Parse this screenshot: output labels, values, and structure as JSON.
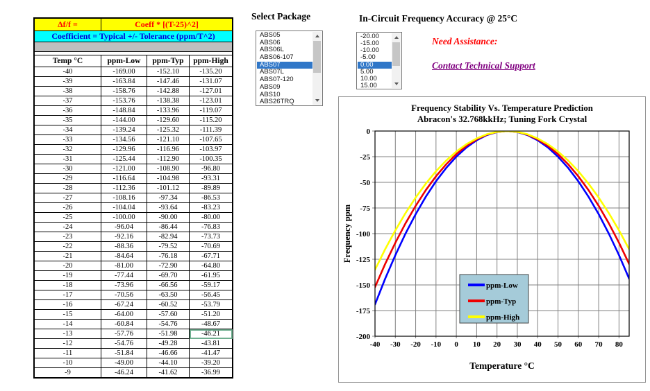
{
  "coeff_table": {
    "formula_row": {
      "label": "Δf/f =",
      "value": "Coeff * [(T-25)^2]"
    },
    "coefficient_row": "Coefficient =  Typical +/-  Tolerance (ppm/T^2)",
    "columns": [
      "Temp °C",
      "ppm-Low",
      "ppm-Typ",
      "ppm-High"
    ],
    "rows": [
      [
        "-40",
        "-169.00",
        "-152.10",
        "-135.20"
      ],
      [
        "-39",
        "-163.84",
        "-147.46",
        "-131.07"
      ],
      [
        "-38",
        "-158.76",
        "-142.88",
        "-127.01"
      ],
      [
        "-37",
        "-153.76",
        "-138.38",
        "-123.01"
      ],
      [
        "-36",
        "-148.84",
        "-133.96",
        "-119.07"
      ],
      [
        "-35",
        "-144.00",
        "-129.60",
        "-115.20"
      ],
      [
        "-34",
        "-139.24",
        "-125.32",
        "-111.39"
      ],
      [
        "-33",
        "-134.56",
        "-121.10",
        "-107.65"
      ],
      [
        "-32",
        "-129.96",
        "-116.96",
        "-103.97"
      ],
      [
        "-31",
        "-125.44",
        "-112.90",
        "-100.35"
      ],
      [
        "-30",
        "-121.00",
        "-108.90",
        "-96.80"
      ],
      [
        "-29",
        "-116.64",
        "-104.98",
        "-93.31"
      ],
      [
        "-28",
        "-112.36",
        "-101.12",
        "-89.89"
      ],
      [
        "-27",
        "-108.16",
        "-97.34",
        "-86.53"
      ],
      [
        "-26",
        "-104.04",
        "-93.64",
        "-83.23"
      ],
      [
        "-25",
        "-100.00",
        "-90.00",
        "-80.00"
      ],
      [
        "-24",
        "-96.04",
        "-86.44",
        "-76.83"
      ],
      [
        "-23",
        "-92.16",
        "-82.94",
        "-73.73"
      ],
      [
        "-22",
        "-88.36",
        "-79.52",
        "-70.69"
      ],
      [
        "-21",
        "-84.64",
        "-76.18",
        "-67.71"
      ],
      [
        "-20",
        "-81.00",
        "-72.90",
        "-64.80"
      ],
      [
        "-19",
        "-77.44",
        "-69.70",
        "-61.95"
      ],
      [
        "-18",
        "-73.96",
        "-66.56",
        "-59.17"
      ],
      [
        "-17",
        "-70.56",
        "-63.50",
        "-56.45"
      ],
      [
        "-16",
        "-67.24",
        "-60.52",
        "-53.79"
      ],
      [
        "-15",
        "-64.00",
        "-57.60",
        "-51.20"
      ],
      [
        "-14",
        "-60.84",
        "-54.76",
        "-48.67"
      ],
      [
        "-13",
        "-57.76",
        "-51.98",
        "-46.21"
      ],
      [
        "-12",
        "-54.76",
        "-49.28",
        "-43.81"
      ],
      [
        "-11",
        "-51.84",
        "-46.66",
        "-41.47"
      ],
      [
        "-10",
        "-49.00",
        "-44.10",
        "-39.20"
      ],
      [
        "-9",
        "-46.24",
        "-41.62",
        "-36.99"
      ]
    ],
    "selected_cell": {
      "temp": "-13",
      "column": "ppm-High"
    }
  },
  "package_list": {
    "label": "Select Package",
    "items": [
      "ABS05",
      "ABS06",
      "ABS06L",
      "ABS06-107",
      "ABS07",
      "ABS07L",
      "ABS07-120",
      "ABS09",
      "ABS10",
      "ABS26TRQ"
    ],
    "selected": "ABS07"
  },
  "accuracy_list": {
    "label": "In-Circuit Frequency Accuracy @ 25°C",
    "items": [
      "-20.00",
      "-15.00",
      "-10.00",
      "-5.00",
      "0.00",
      "5.00",
      "10.00",
      "15.00"
    ],
    "selected": "0.00"
  },
  "assistance": {
    "heading": "Need Assistance:",
    "link": "Contact Technical Support"
  },
  "chart_data": {
    "type": "line",
    "title": "Frequency Stability Vs. Temperature Prediction",
    "subtitle": "Abracon's 32.768kkHz; Tuning Fork Crystal",
    "xlabel": "Temperature °C",
    "ylabel": "Frequency ppm",
    "xlim": [
      -40,
      85
    ],
    "ylim": [
      -200,
      0
    ],
    "x_ticks": [
      -40,
      -30,
      -20,
      -10,
      0,
      10,
      20,
      30,
      40,
      50,
      60,
      70,
      80
    ],
    "y_ticks": [
      0,
      -25,
      -50,
      -75,
      -100,
      -125,
      -150,
      -175,
      -200
    ],
    "grid": true,
    "legend_position": "inside-bottom-center",
    "x": [
      -40,
      -35,
      -30,
      -25,
      -20,
      -15,
      -10,
      -5,
      0,
      5,
      10,
      15,
      20,
      25,
      30,
      35,
      40,
      45,
      50,
      55,
      60,
      65,
      70,
      75,
      80,
      85
    ],
    "series": [
      {
        "name": "ppm-Low",
        "color": "#0000FF",
        "values": [
          -169,
          -144,
          -121,
          -100,
          -81,
          -64,
          -49,
          -36,
          -25,
          -16,
          -9,
          -4,
          -1,
          0,
          -1,
          -4,
          -9,
          -16,
          -25,
          -36,
          -49,
          -64,
          -81,
          -100,
          -121,
          -144
        ]
      },
      {
        "name": "ppm-Typ",
        "color": "#EE0000",
        "values": [
          -152.1,
          -129.6,
          -108.9,
          -90,
          -72.9,
          -57.6,
          -44.1,
          -32.4,
          -22.5,
          -14.4,
          -8.1,
          -3.6,
          -0.9,
          0,
          -0.9,
          -3.6,
          -8.1,
          -14.4,
          -22.5,
          -32.4,
          -44.1,
          -57.6,
          -72.9,
          -90,
          -108.9,
          -129.6
        ]
      },
      {
        "name": "ppm-High",
        "color": "#FFFF00",
        "values": [
          -135.2,
          -115.2,
          -96.8,
          -80,
          -64.8,
          -51.2,
          -39.2,
          -28.8,
          -20,
          -12.8,
          -7.2,
          -3.2,
          -0.8,
          0,
          -0.8,
          -3.2,
          -7.2,
          -12.8,
          -20,
          -28.8,
          -39.2,
          -51.2,
          -64.8,
          -80,
          -96.8,
          -115.2
        ]
      }
    ]
  },
  "colors": {
    "selection_blue": "#3077C8",
    "header_yellow": "#FFFF00",
    "header_red_text": "#FF0000",
    "header_cyan": "#00FFFF",
    "header_blue_text": "#0000D8",
    "gray_row": "#BFBFBF",
    "link_purple": "#800080",
    "legend_bg": "#A5CBD9",
    "gridline": "#808080"
  }
}
